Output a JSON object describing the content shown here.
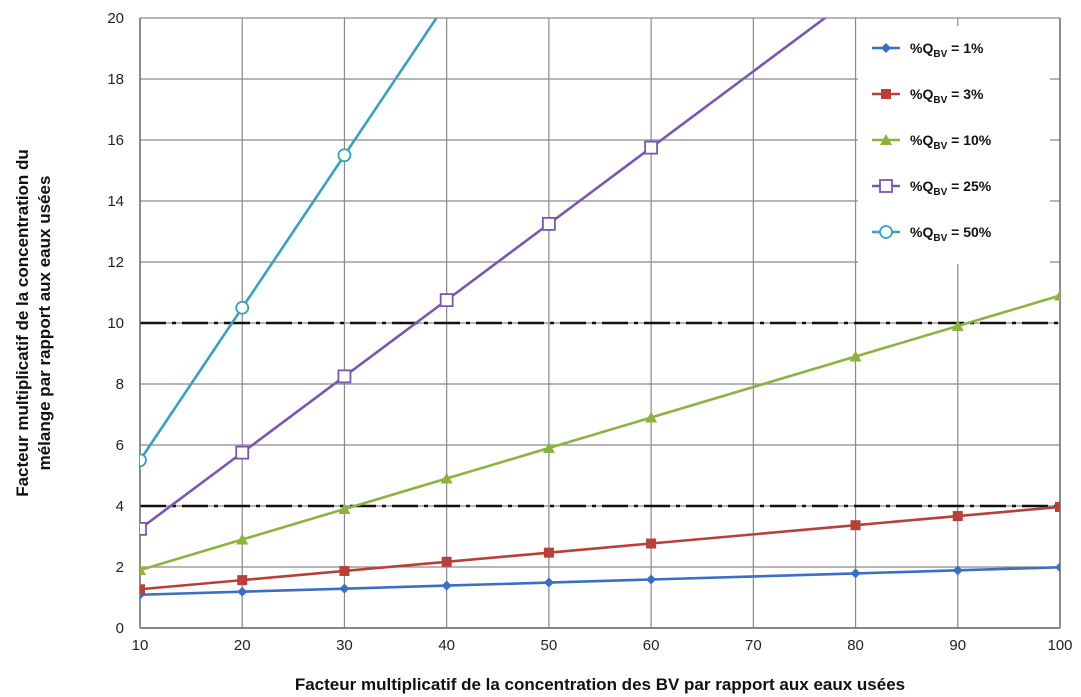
{
  "chart_data": {
    "type": "line",
    "xlabel": "Facteur multiplicatif de la concentration des BV par rapport aux eaux usées",
    "ylabel_lines": [
      "Facteur multiplicatif de la concentration du",
      "mélange par rapport aux eaux usées"
    ],
    "xlim": [
      10,
      100
    ],
    "ylim": [
      0,
      20
    ],
    "x_ticks": [
      10,
      20,
      30,
      40,
      50,
      60,
      70,
      80,
      90,
      100
    ],
    "y_ticks": [
      0,
      2,
      4,
      6,
      8,
      10,
      12,
      14,
      16,
      18,
      20
    ],
    "grid": true,
    "legend_position": "top-right",
    "reference_lines": [
      4,
      10
    ],
    "series": [
      {
        "name": "%QBV = 1%",
        "legend_prefix": "%Q",
        "legend_sub": "BV",
        "legend_suffix": " = 1%",
        "color": "#3b6fc4",
        "marker": "diamond",
        "x": [
          10,
          20,
          30,
          40,
          50,
          60,
          80,
          90,
          100
        ],
        "y": [
          1.09,
          1.19,
          1.29,
          1.39,
          1.49,
          1.59,
          1.79,
          1.89,
          1.99
        ]
      },
      {
        "name": "%QBV = 3%",
        "legend_prefix": "%Q",
        "legend_sub": "BV",
        "legend_suffix": " = 3%",
        "color": "#b8403a",
        "marker": "square",
        "x": [
          10,
          20,
          30,
          40,
          50,
          60,
          80,
          90,
          100
        ],
        "y": [
          1.27,
          1.57,
          1.87,
          2.17,
          2.47,
          2.77,
          3.37,
          3.67,
          3.97
        ]
      },
      {
        "name": "%QBV = 10%",
        "legend_prefix": "%Q",
        "legend_sub": "BV",
        "legend_suffix": " = 10%",
        "color": "#8cb33e",
        "marker": "triangle",
        "x": [
          10,
          20,
          30,
          40,
          50,
          60,
          80,
          90,
          100
        ],
        "y": [
          1.9,
          2.9,
          3.9,
          4.9,
          5.9,
          6.9,
          8.9,
          9.9,
          10.9
        ]
      },
      {
        "name": "%QBV = 25%",
        "legend_prefix": "%Q",
        "legend_sub": "BV",
        "legend_suffix": " = 25%",
        "color": "#7b56b0",
        "marker": "open-square",
        "x": [
          10,
          20,
          30,
          40,
          50,
          60,
          70,
          80
        ],
        "y": [
          3.25,
          5.75,
          8.25,
          10.75,
          13.25,
          15.75,
          18.25,
          20.75
        ],
        "marker_points": [
          10,
          20,
          30,
          40,
          50,
          60
        ]
      },
      {
        "name": "%QBV = 50%",
        "legend_prefix": "%Q",
        "legend_sub": "BV",
        "legend_suffix": " = 50%",
        "color": "#3aa0c0",
        "marker": "open-circle",
        "x": [
          10,
          20,
          30,
          40
        ],
        "y": [
          5.5,
          10.5,
          15.5,
          20.5
        ],
        "marker_points": [
          10,
          20,
          30
        ]
      }
    ]
  }
}
